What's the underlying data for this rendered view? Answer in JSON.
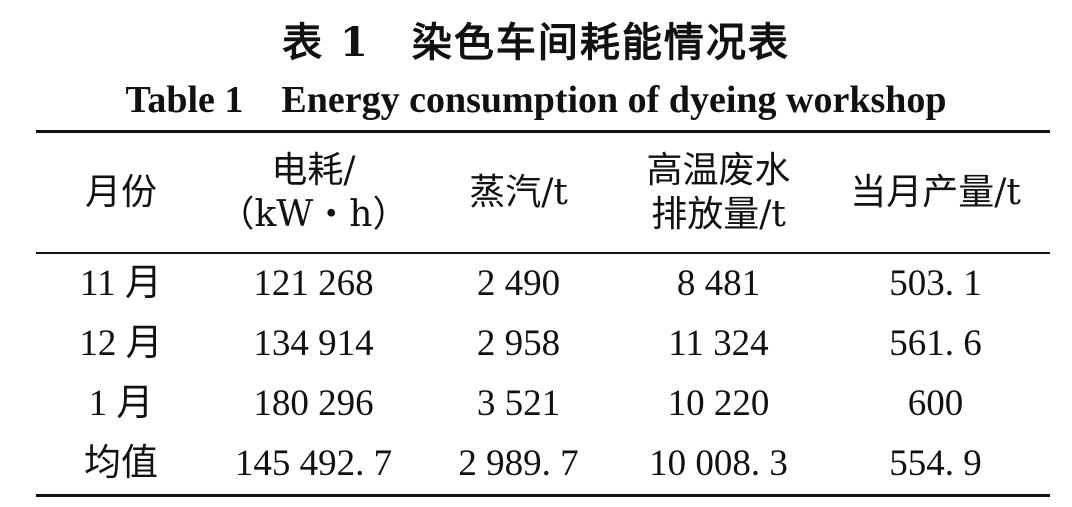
{
  "title_cn": "表 1　染色车间耗能情况表",
  "title_en": "Table 1　Energy consumption of dyeing workshop",
  "headers": [
    [
      "月份"
    ],
    [
      "电耗/",
      "（kW・h）"
    ],
    [
      "蒸汽/t"
    ],
    [
      "高温废水",
      "排放量/t"
    ],
    [
      "当月产量/t"
    ]
  ],
  "rows": [
    [
      "11 月",
      "121 268",
      "2 490",
      "8 481",
      "503. 1"
    ],
    [
      "12 月",
      "134 914",
      "2 958",
      "11 324",
      "561. 6"
    ],
    [
      "1 月",
      "180 296",
      "3 521",
      "10 220",
      "600"
    ],
    [
      "均值",
      "145 492. 7",
      "2 989. 7",
      "10 008. 3",
      "554. 9"
    ]
  ]
}
